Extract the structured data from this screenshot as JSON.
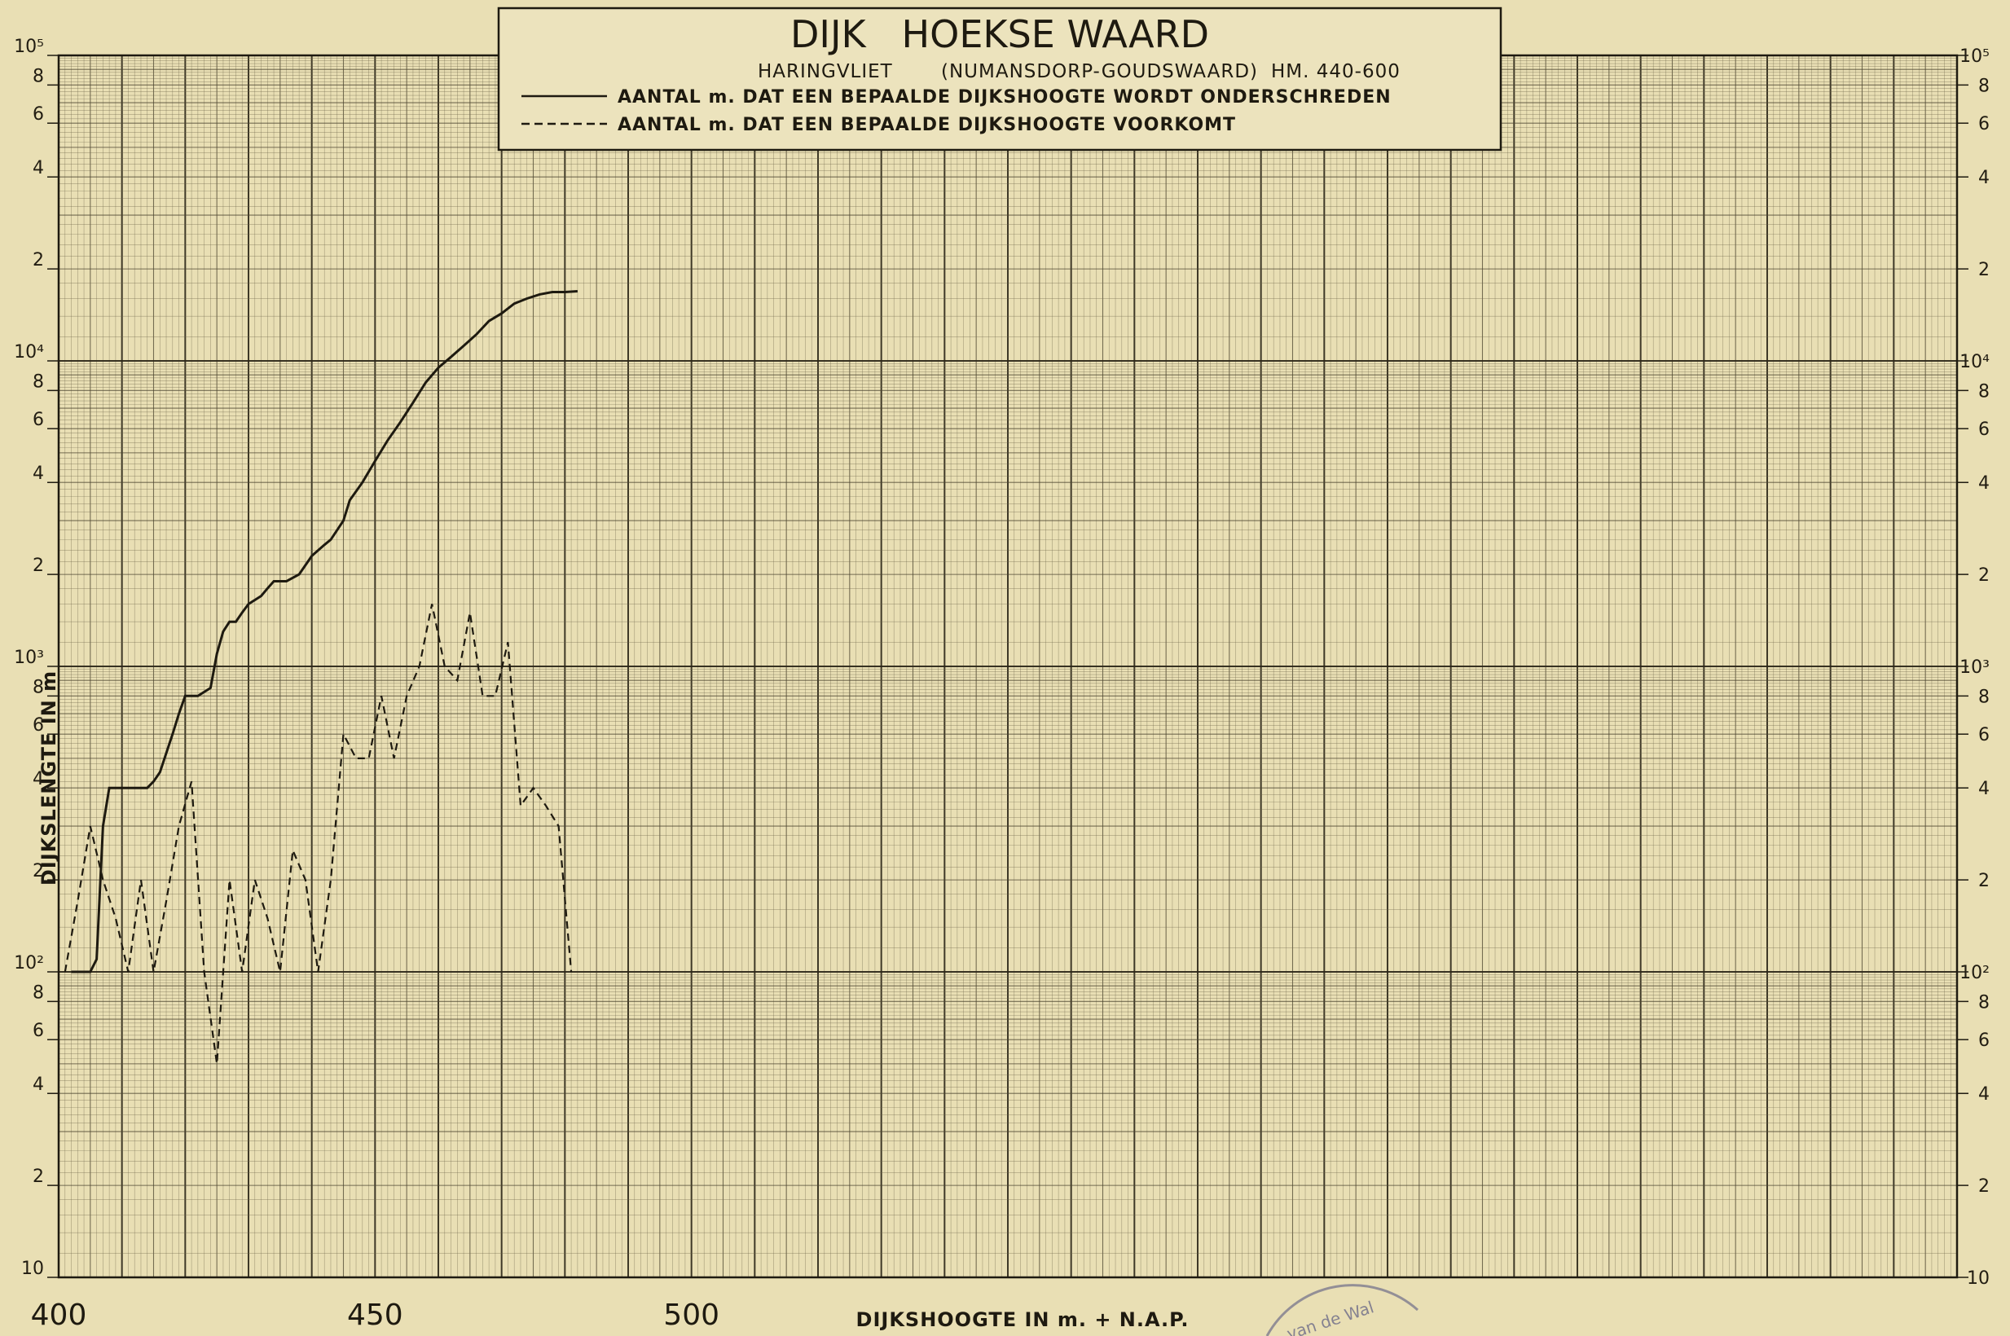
{
  "chart_data": {
    "type": "line",
    "title": "DIJK   HOEKSE WAARD",
    "subtitle_left": "HARINGVLIET",
    "subtitle_mid": "(NUMANSDORP-GOUDSWAARD)",
    "subtitle_right": "HM. 440-600",
    "xlabel": "DIJKSHOOGTE IN m. + N.A.P.",
    "ylabel": "DIJKSLENGTE IN m",
    "xlim": [
      400,
      700
    ],
    "ylim": [
      10,
      100000
    ],
    "yscale": "log",
    "x_ticks": [
      "400",
      "450",
      "500"
    ],
    "y_tick_labels_left": [
      "10⁵",
      "8",
      "6",
      "4",
      "2",
      "10⁴",
      "8",
      "6",
      "4",
      "2",
      "10³",
      "8",
      "6",
      "4",
      "2",
      "10²",
      "8",
      "6",
      "4",
      "2",
      "10"
    ],
    "y_tick_labels_right": [
      "10⁵",
      "8",
      "6",
      "4",
      "2",
      "10⁴",
      "8",
      "6",
      "4",
      "2",
      "10³",
      "8",
      "6",
      "4",
      "2",
      "10²",
      "8",
      "6",
      "4",
      "2",
      "10"
    ],
    "grid": true,
    "legend_position": "top-center",
    "series": [
      {
        "name": "AANTAL m. DAT EEN BEPAALDE DIJKSHOOGTE WORDT ONDERSCHREDEN",
        "style": "solid",
        "x": [
          402,
          404,
          405,
          406,
          407,
          408,
          409,
          410,
          412,
          414,
          415,
          416,
          418,
          419,
          420,
          421,
          422,
          424,
          425,
          426,
          427,
          428,
          429,
          430,
          432,
          433,
          434,
          435,
          436,
          438,
          440,
          442,
          443,
          445,
          446,
          448,
          450,
          452,
          454,
          456,
          458,
          460,
          462,
          464,
          466,
          468,
          470,
          472,
          474,
          476,
          478,
          480,
          482
        ],
        "y": [
          100,
          100,
          100,
          110,
          300,
          400,
          400,
          400,
          400,
          400,
          420,
          450,
          600,
          700,
          800,
          800,
          800,
          850,
          1100,
          1300,
          1400,
          1400,
          1500,
          1600,
          1700,
          1800,
          1900,
          1900,
          1900,
          2000,
          2300,
          2500,
          2600,
          3000,
          3500,
          4000,
          4700,
          5500,
          6300,
          7300,
          8500,
          9500,
          10300,
          11200,
          12200,
          13500,
          14300,
          15400,
          16000,
          16500,
          16800,
          16800,
          16900
        ]
      },
      {
        "name": "AANTAL m. DAT EEN BEPAALDE DIJKSHOOGTE VOORKOMT",
        "style": "dashed",
        "x": [
          401,
          403,
          405,
          407,
          409,
          411,
          413,
          415,
          417,
          419,
          421,
          423,
          425,
          427,
          429,
          431,
          433,
          435,
          437,
          439,
          441,
          443,
          445,
          447,
          449,
          451,
          453,
          455,
          457,
          459,
          461,
          463,
          465,
          467,
          469,
          471,
          473,
          475,
          477,
          479,
          481
        ],
        "y": [
          100,
          170,
          300,
          200,
          150,
          100,
          200,
          100,
          170,
          300,
          420,
          100,
          50,
          200,
          100,
          200,
          150,
          100,
          250,
          200,
          100,
          200,
          600,
          500,
          500,
          800,
          500,
          800,
          1000,
          1600,
          1000,
          900,
          1500,
          800,
          800,
          1200,
          350,
          400,
          350,
          300,
          100
        ]
      }
    ]
  },
  "stamp_text": "van de Wal"
}
